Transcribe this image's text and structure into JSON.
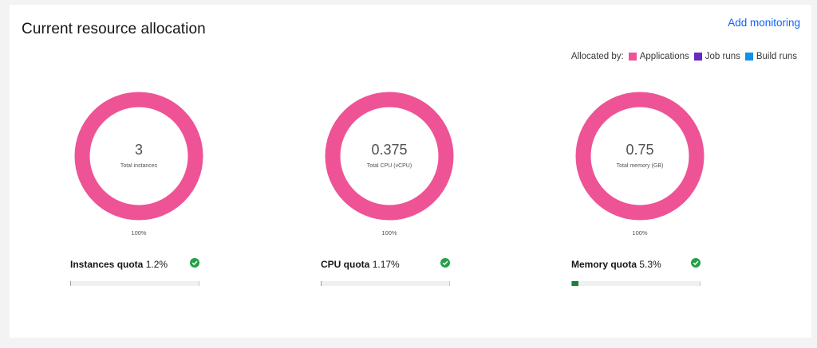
{
  "header": {
    "title": "Current resource allocation",
    "add_monitoring_label": "Add monitoring"
  },
  "legend": {
    "prefix": "Allocated by:",
    "items": [
      {
        "label": "Applications",
        "color": "#ee5396"
      },
      {
        "label": "Job runs",
        "color": "#6929c4"
      },
      {
        "label": "Build runs",
        "color": "#1192e8"
      }
    ]
  },
  "colors": {
    "success": "#24a148",
    "quota_fill": "#198038",
    "link": "#0f62fe"
  },
  "chart_data": [
    {
      "type": "pie",
      "value_text": "3",
      "center_label": "Total instances",
      "percent_label": "100%",
      "slices": [
        {
          "name": "Applications",
          "value": 100
        }
      ]
    },
    {
      "type": "pie",
      "value_text": "0.375",
      "center_label": "Total CPU (vCPU)",
      "percent_label": "100%",
      "slices": [
        {
          "name": "Applications",
          "value": 100
        }
      ]
    },
    {
      "type": "pie",
      "value_text": "0.75",
      "center_label": "Total memory (GB)",
      "percent_label": "100%",
      "slices": [
        {
          "name": "Applications",
          "value": 100
        }
      ]
    }
  ],
  "quotas": [
    {
      "label": "Instances quota",
      "value_text": "1.2%",
      "fraction": 0.012,
      "status_icon": "checkmark-filled-icon"
    },
    {
      "label": "CPU quota",
      "value_text": "1.17%",
      "fraction": 0.0117,
      "status_icon": "checkmark-filled-icon"
    },
    {
      "label": "Memory quota",
      "value_text": "5.3%",
      "fraction": 0.053,
      "status_icon": "checkmark-filled-icon"
    }
  ]
}
